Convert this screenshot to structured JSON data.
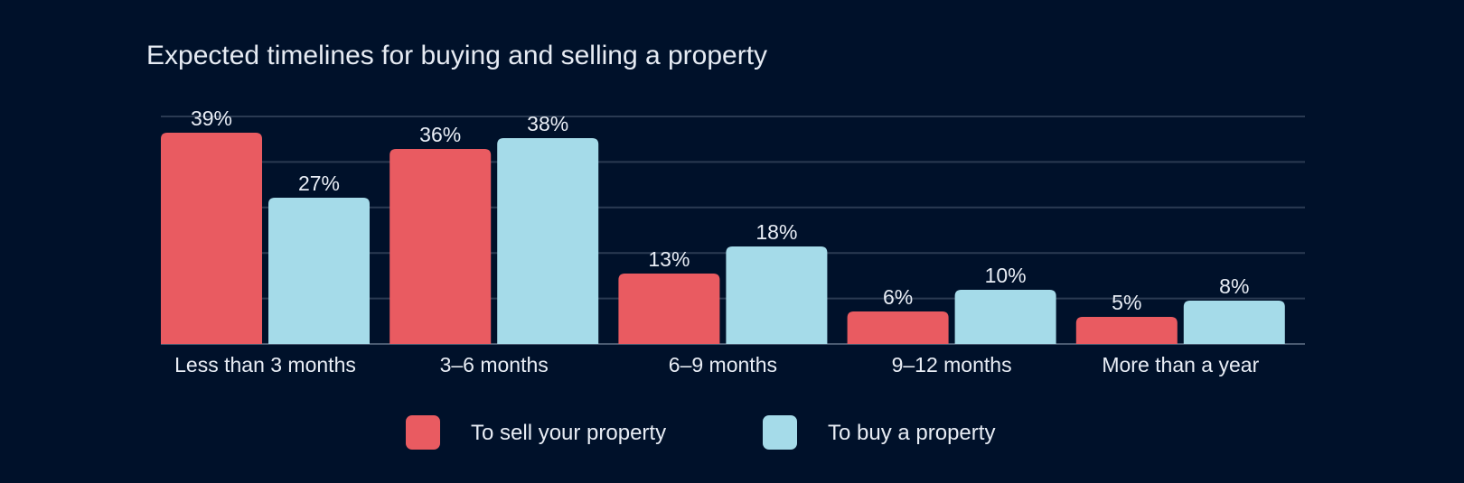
{
  "chart_data": {
    "type": "bar",
    "title": "Expected timelines for buying and selling a property",
    "categories": [
      "Less than 3 months",
      "3–6 months",
      "6–9 months",
      "9–12 months",
      "More than a year"
    ],
    "series": [
      {
        "name": "To sell your property",
        "color": "#e95b61",
        "values": [
          39,
          36,
          13,
          6,
          5
        ],
        "labels": [
          "39%",
          "36%",
          "13%",
          "6%",
          "5%"
        ]
      },
      {
        "name": "To buy a property",
        "color": "#a5dbe9",
        "values": [
          27,
          38,
          18,
          10,
          8
        ],
        "labels": [
          "27%",
          "38%",
          "18%",
          "10%",
          "8%"
        ]
      }
    ],
    "ylim": [
      0,
      42
    ],
    "grid": true,
    "legend_position": "bottom-center",
    "xlabel": "",
    "ylabel": ""
  }
}
